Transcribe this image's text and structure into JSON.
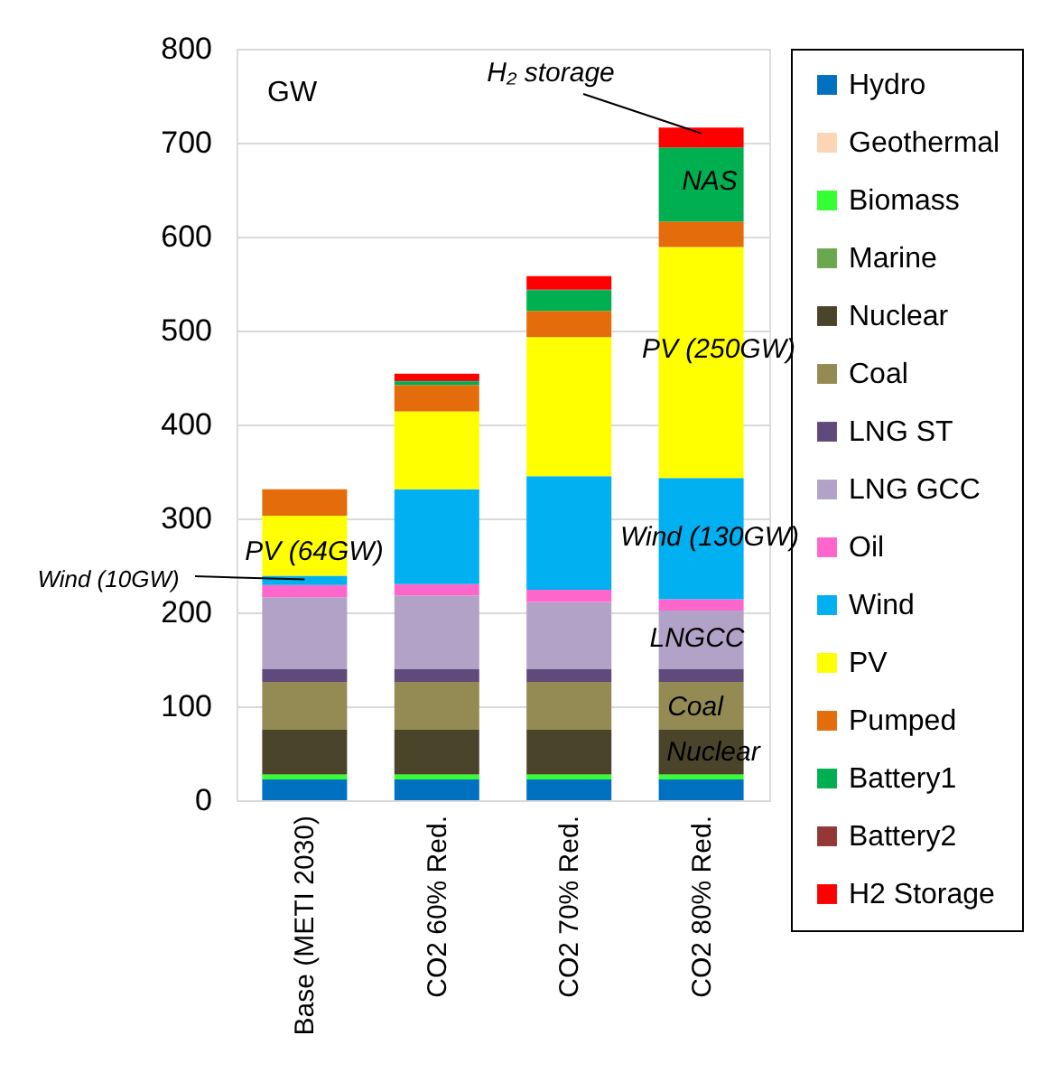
{
  "chart_data": {
    "type": "bar",
    "stacked": true,
    "categories": [
      "Base (METI 2030)",
      "CO2 60% Red.",
      "CO2 70% Red.",
      "CO2 80% Red."
    ],
    "series": [
      {
        "name": "Hydro",
        "color": "#0070c0",
        "values": [
          22,
          22,
          22,
          22
        ]
      },
      {
        "name": "Geothermal",
        "color": "#fcd5b5",
        "values": [
          null,
          null,
          null,
          null
        ]
      },
      {
        "name": "Biomass",
        "color": "#33ff33",
        "values": [
          5,
          5,
          5,
          5
        ]
      },
      {
        "name": "Marine",
        "color": "#6aa84f",
        "values": [
          1,
          1,
          1,
          1
        ]
      },
      {
        "name": "Nuclear",
        "color": "#4a452a",
        "values": [
          47,
          47,
          47,
          47
        ]
      },
      {
        "name": "Coal",
        "color": "#948a54",
        "values": [
          51,
          51,
          51,
          51
        ]
      },
      {
        "name": "LNG ST",
        "color": "#604a7b",
        "values": [
          14,
          14,
          14,
          14
        ]
      },
      {
        "name": "LNG GCC",
        "color": "#b3a2c7",
        "values": [
          76,
          78,
          71,
          62
        ]
      },
      {
        "name": "Oil",
        "color": "#ff66cc",
        "values": [
          13,
          12,
          13,
          12
        ]
      },
      {
        "name": "Wind",
        "color": "#00b0f0",
        "values": [
          10,
          101,
          121,
          129
        ]
      },
      {
        "name": "PV",
        "color": "#ffff00",
        "values": [
          64,
          83,
          148,
          246
        ]
      },
      {
        "name": "Pumped",
        "color": "#e46c0a",
        "values": [
          28,
          28,
          28,
          27
        ]
      },
      {
        "name": "Battery1",
        "color": "#00b050",
        "values": [
          null,
          4,
          22,
          79
        ]
      },
      {
        "name": "Battery2",
        "color": "#953735",
        "values": [
          null,
          1,
          1,
          null
        ]
      },
      {
        "name": "H2 Storage",
        "color": "#ff0000",
        "values": [
          null,
          7,
          14,
          21
        ]
      }
    ],
    "ylim": [
      0,
      800
    ],
    "yticks": [
      0,
      100,
      200,
      300,
      400,
      500,
      600,
      700,
      800
    ],
    "grid": "y",
    "legend": "right",
    "annotations": [
      "GW",
      {
        "text": "H₂ storage",
        "x": "CO2 80% Red.",
        "y": 710
      },
      "NAS",
      "PV (250GW)",
      "Wind (130GW)",
      "LNGCC",
      "Coal",
      "Nuclear",
      "PV (64GW)",
      {
        "text": "Wind (10GW)",
        "x": "Base (METI 2030)",
        "y": 235
      }
    ]
  }
}
